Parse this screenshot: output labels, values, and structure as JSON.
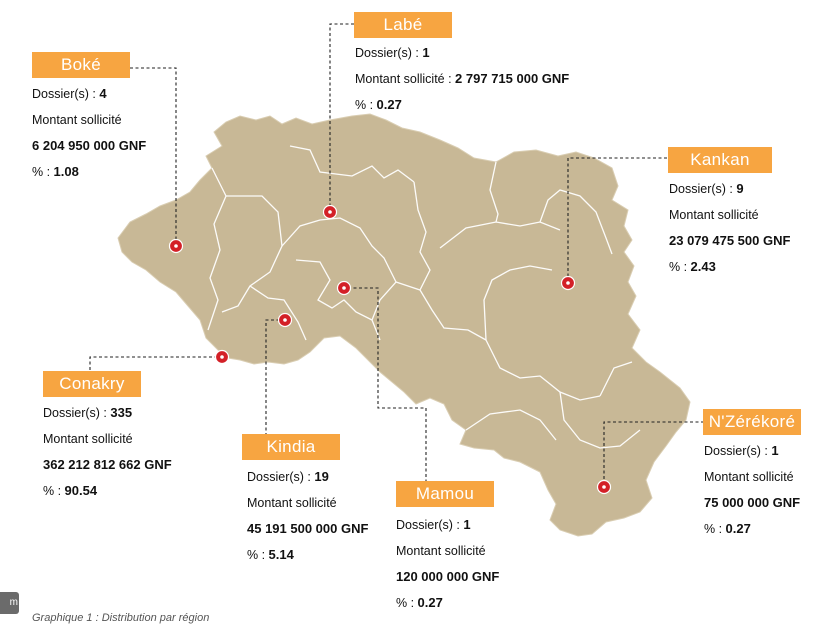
{
  "regions": [
    {
      "id": "boke",
      "name": "Boké",
      "dossiers_label": "Dossier(s) : ",
      "dossiers": "4",
      "montant_label": "Montant sollicité",
      "montant": "6 204 950 000 GNF",
      "pct_label": "% : ",
      "pct": "1.08"
    },
    {
      "id": "labe",
      "name": "Labé",
      "dossiers_label": "Dossier(s) : ",
      "dossiers": "1",
      "montant_label": "Montant sollicité : ",
      "montant": "2 797 715 000 GNF",
      "pct_label": "% : ",
      "pct": "0.27"
    },
    {
      "id": "kankan",
      "name": "Kankan",
      "dossiers_label": "Dossier(s) : ",
      "dossiers": "9",
      "montant_label": "Montant sollicité",
      "montant": "23 079 475 500 GNF",
      "pct_label": "% : ",
      "pct": "2.43"
    },
    {
      "id": "conakry",
      "name": "Conakry",
      "dossiers_label": "Dossier(s) : ",
      "dossiers": "335",
      "montant_label": "Montant sollicité",
      "montant": "362 212 812 662 GNF",
      "pct_label": "% : ",
      "pct": "90.54"
    },
    {
      "id": "kindia",
      "name": "Kindia",
      "dossiers_label": "Dossier(s) : ",
      "dossiers": "19",
      "montant_label": "Montant sollicité",
      "montant": "45 191 500 000 GNF",
      "pct_label": "% :  ",
      "pct": "5.14"
    },
    {
      "id": "mamou",
      "name": "Mamou",
      "dossiers_label": "Dossier(s) : ",
      "dossiers": "1",
      "montant_label": "Montant sollicité",
      "montant": "120 000 000 GNF",
      "pct_label": "% : ",
      "pct": "0.27"
    },
    {
      "id": "nzerekore",
      "name": "N'Zérékoré",
      "dossiers_label": "Dossier(s) : ",
      "dossiers": "1",
      "montant_label": "Montant sollicité",
      "montant": "75 000 000 GNF",
      "pct_label": "% : ",
      "pct": "0.27"
    }
  ],
  "corner_label": "m",
  "caption": "Graphique 1 : Distribution par région",
  "colors": {
    "land": "#c8b896",
    "border": "#ffffff",
    "tag": "#f7a541",
    "marker": "#d32027"
  }
}
